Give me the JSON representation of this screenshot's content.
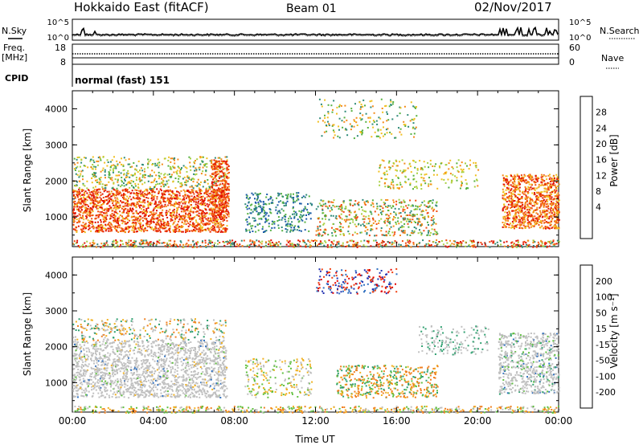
{
  "header": {
    "station": "Hokkaido East (fitACF)",
    "beam": "Beam 01",
    "date": "02/Nov/2017"
  },
  "status": {
    "nsky_label": "N.Sky",
    "nsearch_label": "N.Search",
    "noise_ticks": [
      "10^5",
      "10^0"
    ],
    "freq_label": "Freq.",
    "freq_unit": "[MHz]",
    "freq_ticks": [
      "18",
      "8"
    ],
    "nave_label": "Nave",
    "nave_ticks": [
      "60",
      "0"
    ],
    "cpid_label": "CPID",
    "cpid_value": "normal (fast) 151"
  },
  "chart_data": [
    {
      "type": "heatmap",
      "name": "power",
      "ylabel": "Slant Range [km]",
      "yticks": [
        1000,
        2000,
        3000,
        4000
      ],
      "ylim": [
        180,
        4500
      ],
      "xticks": [
        "00:00",
        "04:00",
        "08:00",
        "12:00",
        "16:00",
        "20:00",
        "00:00"
      ],
      "xlim_hours": [
        0,
        24
      ],
      "colorbar": {
        "label": "Power [dB]",
        "ticks": [
          "4",
          "8",
          "12",
          "16",
          "20",
          "24",
          "28"
        ],
        "colors": [
          "#0000ff",
          "#1a5aa8",
          "#2f8a78",
          "#55b040",
          "#a8d040",
          "#f0c020",
          "#f58a18",
          "#f04d10",
          "#e01000"
        ]
      }
    },
    {
      "type": "heatmap",
      "name": "velocity",
      "ylabel": "Slant Range [km]",
      "yticks": [
        1000,
        2000,
        3000,
        4000
      ],
      "ylim": [
        180,
        4500
      ],
      "xticks": [
        "00:00",
        "04:00",
        "08:00",
        "12:00",
        "16:00",
        "20:00",
        "00:00"
      ],
      "xlabel": "Time UT",
      "colorbar": {
        "label": "Velocity [m s⁻¹]",
        "ticks": [
          "200",
          "100",
          "50",
          "15",
          "-15",
          "-50",
          "-100",
          "-200"
        ],
        "colors": [
          "#2030b0",
          "#3070c0",
          "#2fa070",
          "#60c040",
          "#c0c0c0",
          "#f0b020",
          "#f08020",
          "#f04010",
          "#e00000"
        ]
      }
    }
  ]
}
